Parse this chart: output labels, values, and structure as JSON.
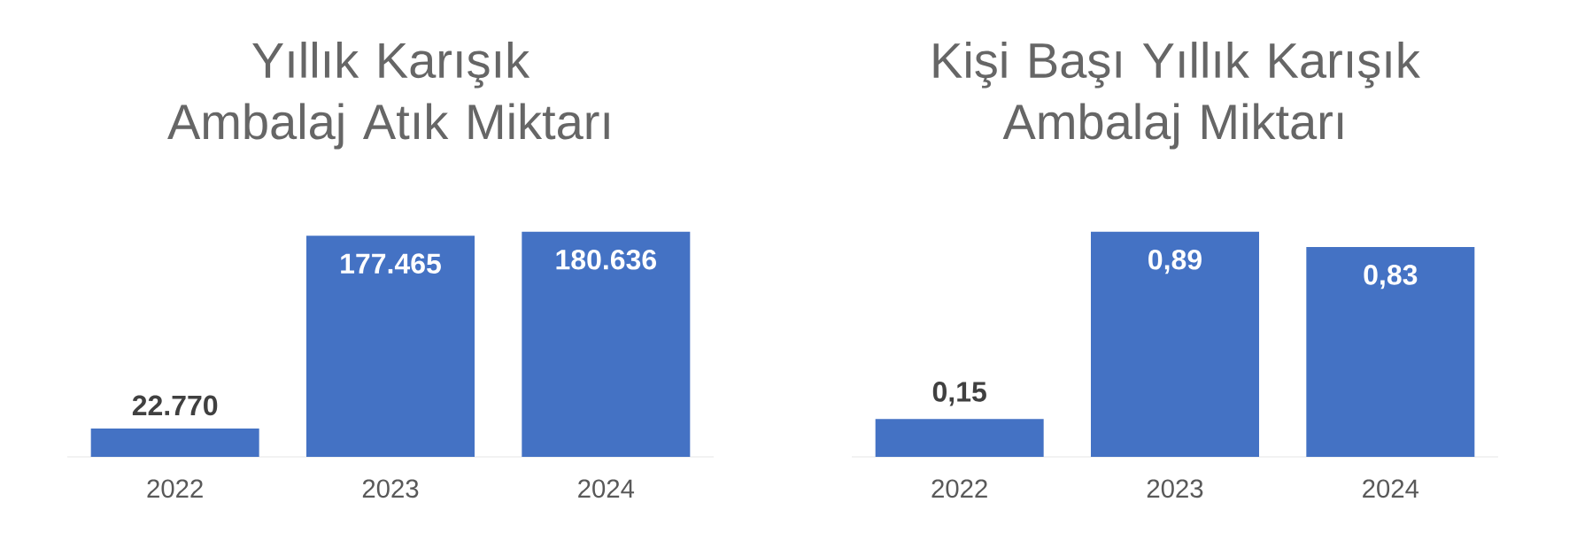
{
  "chart_data": [
    {
      "type": "bar",
      "title": "Yıllık Karışık Ambalaj Atık Miktarı",
      "categories": [
        "2022",
        "2023",
        "2024"
      ],
      "values": [
        22770,
        177465,
        180636
      ],
      "value_labels": [
        "22.770",
        "177.465",
        "180.636"
      ],
      "color": "#4472c4"
    },
    {
      "type": "bar",
      "title": "Kişi Başı Yıllık Karışık Ambalaj Miktarı",
      "categories": [
        "2022",
        "2023",
        "2024"
      ],
      "values": [
        0.15,
        0.89,
        0.83
      ],
      "value_labels": [
        "0,15",
        "0,89",
        "0,83"
      ],
      "color": "#4472c4"
    }
  ]
}
